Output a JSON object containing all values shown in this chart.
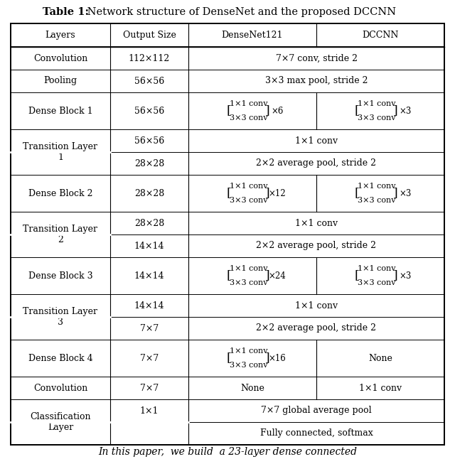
{
  "title_bold": "Table 1:",
  "title_normal": " Network structure of DenseNet and the proposed DCCNN",
  "headers": [
    "Layers",
    "Output Size",
    "DenseNet121",
    "DCCNN"
  ],
  "line_color": "#000000",
  "text_color": "#000000",
  "font_size": 9.0,
  "title_font_size": 10.5,
  "bottom_text": "In this paper,  we build  a 23-layer dense connected"
}
